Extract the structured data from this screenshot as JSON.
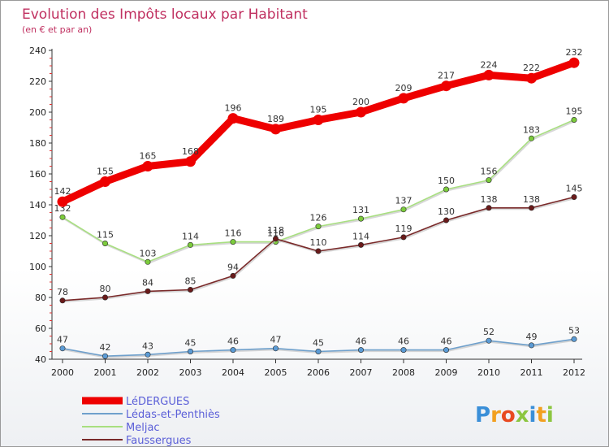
{
  "chart_data": {
    "type": "line",
    "title": "Evolution des Impôts locaux par Habitant",
    "subtitle": "(en € et par an)",
    "xlabel": "",
    "ylabel": "",
    "x": [
      "2000",
      "2001",
      "2002",
      "2003",
      "2004",
      "2005",
      "2006",
      "2007",
      "2008",
      "2009",
      "2010",
      "2011",
      "2012"
    ],
    "ylim": [
      40,
      240
    ],
    "yticks": [
      "40",
      "60",
      "80",
      "100",
      "120",
      "140",
      "160",
      "180",
      "200",
      "220",
      "240"
    ],
    "grid": false,
    "legend_position": "bottom-left",
    "series": [
      {
        "name": "LéDERGUES",
        "color": "#ee0000",
        "point_color": "#ee0000",
        "label_color": "#333333",
        "thick": true,
        "values": [
          142,
          155,
          165,
          168,
          196,
          189,
          195,
          200,
          209,
          217,
          224,
          222,
          232
        ],
        "labels": [
          "142",
          "155",
          "165",
          "168",
          "196",
          "189",
          "195",
          "200",
          "209",
          "217",
          "224",
          "222",
          "232"
        ]
      },
      {
        "name": "Lédas-et-Penthiès",
        "color": "#6fa0cc",
        "point_color": "#5b9bd5",
        "label_color": "#333333",
        "thick": false,
        "values": [
          47,
          42,
          43,
          45,
          46,
          47,
          45,
          46,
          46,
          46,
          52,
          49,
          53
        ],
        "labels": [
          "47",
          "42",
          "43",
          "45",
          "46",
          "47",
          "45",
          "46",
          "46",
          "46",
          "52",
          "49",
          "53"
        ]
      },
      {
        "name": "Meljac",
        "color": "#a8df80",
        "point_color": "#7ccc3c",
        "label_color": "#333333",
        "thick": false,
        "values": [
          132,
          115,
          103,
          114,
          116,
          116,
          126,
          131,
          137,
          150,
          156,
          183,
          195
        ],
        "labels": [
          "132",
          "115",
          "103",
          "114",
          "116",
          "116",
          "126",
          "131",
          "137",
          "150",
          "156",
          "183",
          "195"
        ]
      },
      {
        "name": "Faussergues",
        "color": "#7a2a2a",
        "point_color": "#6a1a1a",
        "label_color": "#333333",
        "thick": false,
        "values": [
          78,
          80,
          84,
          85,
          94,
          118,
          110,
          114,
          119,
          130,
          138,
          138,
          145
        ],
        "labels": [
          "78",
          "80",
          "84",
          "85",
          "94",
          "118",
          "110",
          "114",
          "119",
          "130",
          "138",
          "138",
          "145"
        ]
      }
    ]
  },
  "brand": {
    "letters": [
      "P",
      "r",
      "o",
      "x",
      "i",
      "t",
      "i"
    ],
    "colors": [
      "#3a8fd8",
      "#f2a020",
      "#e84a20",
      "#8cc640",
      "#3a8fd8",
      "#f2a020",
      "#8cc640"
    ]
  },
  "colors": {
    "title": "#c03060",
    "legend_text": "#5b5fd8",
    "axis": "#333333"
  }
}
